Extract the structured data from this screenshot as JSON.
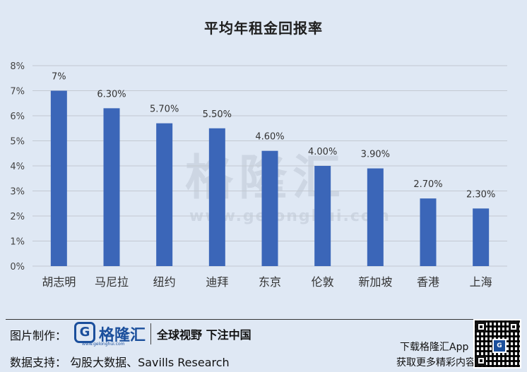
{
  "chart_data": {
    "type": "bar",
    "title": "平均年租金回报率",
    "categories": [
      "胡志明",
      "马尼拉",
      "纽约",
      "迪拜",
      "东京",
      "伦敦",
      "新加坡",
      "香港",
      "上海"
    ],
    "values": [
      7.0,
      6.3,
      5.7,
      5.5,
      4.6,
      4.0,
      3.9,
      2.7,
      2.3
    ],
    "data_labels": [
      "7%",
      "6.30%",
      "5.70%",
      "5.50%",
      "4.60%",
      "4.00%",
      "3.90%",
      "2.70%",
      "2.30%"
    ],
    "yticks": [
      "0%",
      "1%",
      "2%",
      "3%",
      "4%",
      "5%",
      "6%",
      "7%",
      "8%"
    ],
    "ylim": [
      0,
      8
    ],
    "xlabel": "",
    "ylabel": "",
    "grid": true,
    "colors": {
      "bar": "#3b66b8",
      "grid": "#c3c9d2",
      "background": "#dfe8f4"
    }
  },
  "watermark": {
    "text": "格隆汇",
    "url": "www.gelonghui.com"
  },
  "footer": {
    "credit_label": "图片制作：",
    "logo_glyph": "G",
    "brand_name": "格隆汇",
    "brand_url": "www.gelonghui.com",
    "slogan": "全球视野 下注中国",
    "source": "数据支持： 勾股大数据、Savills Research",
    "app_line1": "下载格隆汇App",
    "app_line2": "获取更多精彩内容",
    "qr_logo_glyph": "G"
  }
}
